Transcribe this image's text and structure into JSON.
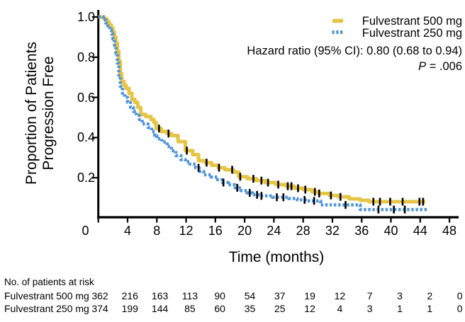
{
  "colors": {
    "arm500": "#E6C445",
    "arm250": "#4C93DB",
    "axis": "#000000",
    "censor_tick": "#000000",
    "background": "#ffffff"
  },
  "chart_data": {
    "type": "line",
    "subtype": "kaplan-meier-step",
    "title": "",
    "xlabel": "Time (months)",
    "ylabel_lines": [
      "Proportion of Patients",
      "Progression Free"
    ],
    "xlim": [
      0,
      48
    ],
    "ylim": [
      0,
      1.0
    ],
    "x_ticks": [
      0,
      4,
      8,
      12,
      16,
      20,
      24,
      28,
      32,
      36,
      40,
      44,
      48
    ],
    "y_ticks": [
      1.0,
      0.8,
      0.6,
      0.4,
      0.2
    ],
    "y_tick_labels": [
      "1.0",
      "0.8",
      "0.6",
      "0.4",
      "0.2"
    ],
    "grid": false,
    "legend_position": "top-right",
    "annotations": {
      "hazard_ratio": "Hazard ratio (95% CI): 0.80 (0.68 to 0.94)",
      "p_italic": "P",
      "p_rest": " = .006"
    },
    "series": [
      {
        "name": "Fulvestrant 500 mg",
        "color": "#E6C445",
        "line": "solid",
        "steps": [
          [
            0,
            1.0
          ],
          [
            0.8,
            0.99
          ],
          [
            1.2,
            0.975
          ],
          [
            1.5,
            0.96
          ],
          [
            1.8,
            0.945
          ],
          [
            2.0,
            0.925
          ],
          [
            2.2,
            0.9
          ],
          [
            2.4,
            0.87
          ],
          [
            2.6,
            0.83
          ],
          [
            2.8,
            0.78
          ],
          [
            3.0,
            0.72
          ],
          [
            3.2,
            0.68
          ],
          [
            3.5,
            0.66
          ],
          [
            3.8,
            0.645
          ],
          [
            4.2,
            0.62
          ],
          [
            4.6,
            0.59
          ],
          [
            5.0,
            0.575
          ],
          [
            5.4,
            0.55
          ],
          [
            5.8,
            0.515
          ],
          [
            6.5,
            0.505
          ],
          [
            7.2,
            0.49
          ],
          [
            7.6,
            0.475
          ],
          [
            7.9,
            0.445
          ],
          [
            8.6,
            0.43
          ],
          [
            9.4,
            0.42
          ],
          [
            10.0,
            0.41
          ],
          [
            10.9,
            0.38
          ],
          [
            11.9,
            0.335
          ],
          [
            12.9,
            0.315
          ],
          [
            13.7,
            0.285
          ],
          [
            14.6,
            0.275
          ],
          [
            15.5,
            0.262
          ],
          [
            16.4,
            0.25
          ],
          [
            17.3,
            0.24
          ],
          [
            18.5,
            0.228
          ],
          [
            19.2,
            0.205
          ],
          [
            20.4,
            0.195
          ],
          [
            21.6,
            0.186
          ],
          [
            22.8,
            0.176
          ],
          [
            24.3,
            0.166
          ],
          [
            25.7,
            0.158
          ],
          [
            26.8,
            0.148
          ],
          [
            28.0,
            0.141
          ],
          [
            29.2,
            0.13
          ],
          [
            30.1,
            0.122
          ],
          [
            31.6,
            0.112
          ],
          [
            32.8,
            0.105
          ],
          [
            34.3,
            0.095
          ],
          [
            35.8,
            0.088
          ],
          [
            37.0,
            0.081
          ],
          [
            44.7,
            0.081
          ]
        ],
        "censor_times": [
          8.3,
          9.6,
          12.1,
          14.8,
          16.5,
          18.3,
          19.4,
          21.2,
          22.3,
          23.2,
          24.6,
          25.9,
          26.4,
          27.3,
          28.3,
          29.6,
          30.2,
          31.8,
          33.1,
          37.6,
          38.5,
          39.9,
          41.6,
          43.9,
          44.4
        ]
      },
      {
        "name": "Fulvestrant 250 mg",
        "color": "#4C93DB",
        "line": "dotted",
        "steps": [
          [
            0,
            1.0
          ],
          [
            0.7,
            0.985
          ],
          [
            1.0,
            0.97
          ],
          [
            1.3,
            0.955
          ],
          [
            1.6,
            0.935
          ],
          [
            1.8,
            0.915
          ],
          [
            2.0,
            0.89
          ],
          [
            2.2,
            0.86
          ],
          [
            2.4,
            0.82
          ],
          [
            2.6,
            0.77
          ],
          [
            2.8,
            0.71
          ],
          [
            3.0,
            0.655
          ],
          [
            3.3,
            0.62
          ],
          [
            3.6,
            0.6
          ],
          [
            4.0,
            0.575
          ],
          [
            4.4,
            0.55
          ],
          [
            4.8,
            0.53
          ],
          [
            5.2,
            0.51
          ],
          [
            5.6,
            0.49
          ],
          [
            6.0,
            0.468
          ],
          [
            6.8,
            0.45
          ],
          [
            7.3,
            0.43
          ],
          [
            7.7,
            0.41
          ],
          [
            8.0,
            0.394
          ],
          [
            8.7,
            0.378
          ],
          [
            9.4,
            0.356
          ],
          [
            10.0,
            0.334
          ],
          [
            10.6,
            0.31
          ],
          [
            11.3,
            0.29
          ],
          [
            11.9,
            0.28
          ],
          [
            12.5,
            0.268
          ],
          [
            13.3,
            0.25
          ],
          [
            13.8,
            0.232
          ],
          [
            14.4,
            0.215
          ],
          [
            15.4,
            0.204
          ],
          [
            16.3,
            0.19
          ],
          [
            17.0,
            0.176
          ],
          [
            17.8,
            0.165
          ],
          [
            18.7,
            0.15
          ],
          [
            19.5,
            0.136
          ],
          [
            20.3,
            0.125
          ],
          [
            21.1,
            0.115
          ],
          [
            22.2,
            0.11
          ],
          [
            23.8,
            0.103
          ],
          [
            26.0,
            0.097
          ],
          [
            27.2,
            0.09
          ],
          [
            28.6,
            0.085
          ],
          [
            30.4,
            0.065
          ],
          [
            35.8,
            0.042
          ],
          [
            44.9,
            0.042
          ]
        ],
        "censor_times": [
          13.7,
          17.1,
          19.0,
          20.7,
          21.7,
          22.3,
          24.4,
          25.3,
          28.2,
          29.5,
          33.8,
          38.3,
          40.4,
          41.9
        ]
      }
    ]
  },
  "risk_table": {
    "title": "No. of patients at risk",
    "times": [
      0,
      4,
      8,
      12,
      16,
      20,
      24,
      28,
      32,
      36,
      40,
      44,
      48
    ],
    "rows": [
      {
        "label": "Fulvestrant 500 mg",
        "counts": [
          "362",
          "216",
          "163",
          "113",
          "90",
          "54",
          "37",
          "19",
          "12",
          "7",
          "3",
          "2",
          "0"
        ]
      },
      {
        "label": "Fulvestrant 250 mg",
        "counts": [
          "374",
          "199",
          "144",
          "85",
          "60",
          "35",
          "25",
          "12",
          "4",
          "3",
          "1",
          "1",
          "0"
        ]
      }
    ]
  }
}
